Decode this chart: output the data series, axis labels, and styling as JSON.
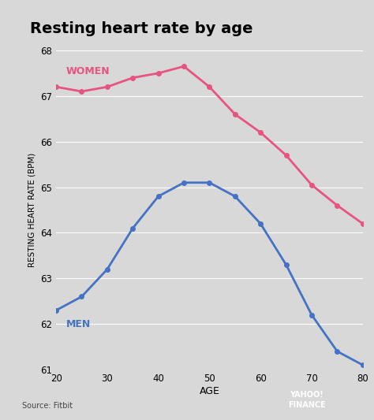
{
  "title": "Resting heart rate by age",
  "xlabel": "AGE",
  "ylabel": "RESTING HEART RATE (BPM)",
  "background_color": "#d8d8d8",
  "plot_bg_color": "#d8d8d8",
  "men_color": "#4472c4",
  "women_color": "#e75480",
  "ages": [
    20,
    25,
    30,
    35,
    40,
    45,
    50,
    55,
    60,
    65,
    70,
    75,
    80
  ],
  "men_values": [
    62.3,
    62.6,
    63.2,
    64.1,
    64.8,
    65.1,
    65.1,
    64.8,
    64.2,
    63.3,
    62.2,
    61.4,
    61.1
  ],
  "women_values": [
    67.2,
    67.1,
    67.2,
    67.4,
    67.5,
    67.65,
    67.2,
    66.6,
    66.2,
    65.7,
    65.05,
    64.6,
    64.2
  ],
  "ylim": [
    61,
    68
  ],
  "xlim": [
    20,
    80
  ],
  "yticks": [
    61,
    62,
    63,
    64,
    65,
    66,
    67,
    68
  ],
  "xticks": [
    20,
    30,
    40,
    50,
    60,
    70,
    80
  ],
  "source_text": "Source: Fitbit",
  "yahoo_box_color": "#4b0082",
  "yahoo_text": "YAHOO!\nFINANCE"
}
